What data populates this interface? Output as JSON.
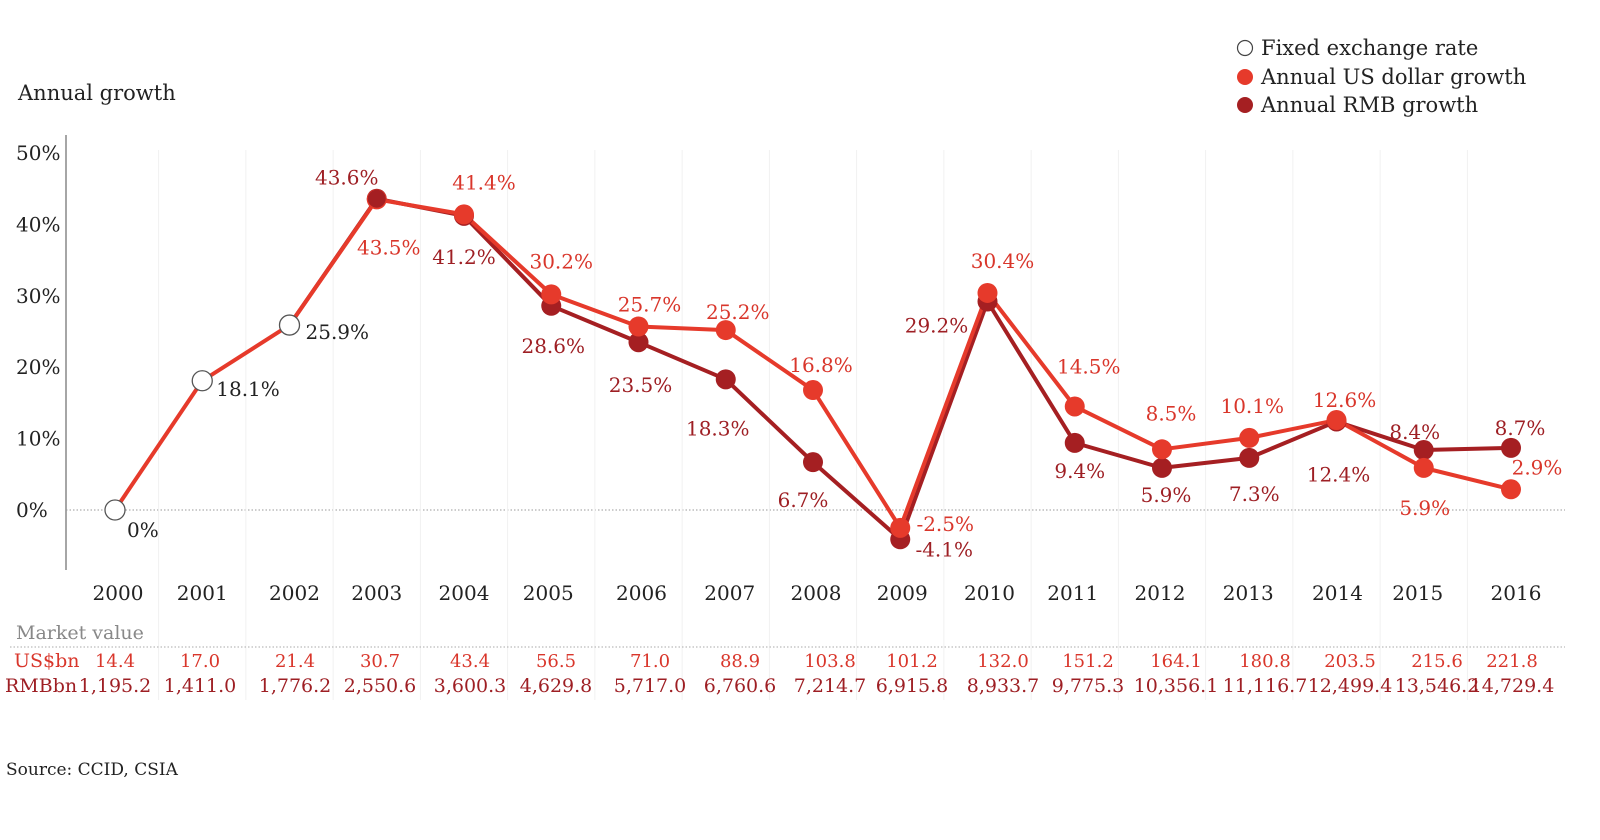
{
  "chart_data": {
    "type": "line",
    "ylabel": "Annual growth",
    "ylim": [
      -8,
      50
    ],
    "yticks": [
      "0%",
      "10%",
      "20%",
      "30%",
      "40%",
      "50%"
    ],
    "ytick_values": [
      0,
      10,
      20,
      30,
      40,
      50
    ],
    "grid": false,
    "legend_position": "top-right",
    "legend": [
      "Fixed exchange rate",
      "Annual US dollar growth",
      "Annual RMB growth"
    ],
    "x": [
      "2000",
      "2001",
      "2002",
      "2003",
      "2004",
      "2005",
      "2006",
      "2007",
      "2008",
      "2009",
      "2010",
      "2011",
      "2012",
      "2013",
      "2014",
      "2015",
      "2016"
    ],
    "fixed_years_count": 3,
    "series": [
      {
        "name": "Annual US dollar growth",
        "color": "#e63a2b",
        "values": [
          0,
          18.1,
          25.9,
          43.5,
          41.4,
          30.2,
          25.7,
          25.2,
          16.8,
          -2.5,
          30.4,
          14.5,
          8.5,
          10.1,
          12.6,
          5.9,
          2.9
        ],
        "labels": [
          "0%",
          "18.1%",
          "25.9%",
          "43.5%",
          "41.4%",
          "30.2%",
          "25.7%",
          "25.2%",
          "16.8%",
          "-2.5%",
          "30.4%",
          "14.5%",
          "8.5%",
          "10.1%",
          "12.6%",
          "5.9%",
          "2.9%"
        ]
      },
      {
        "name": "Annual RMB growth",
        "color": "#a51f22",
        "values": [
          0,
          18.1,
          25.9,
          43.6,
          41.2,
          28.6,
          23.5,
          18.3,
          6.7,
          -4.1,
          29.2,
          9.4,
          5.9,
          7.3,
          12.4,
          8.4,
          8.7
        ],
        "labels": [
          "",
          "",
          "",
          "43.6%",
          "41.2%",
          "28.6%",
          "23.5%",
          "18.3%",
          "6.7%",
          "-4.1%",
          "29.2%",
          "9.4%",
          "5.9%",
          "7.3%",
          "12.4%",
          "8.4%",
          "8.7%"
        ]
      }
    ],
    "table": {
      "title": "Market value",
      "rows": [
        {
          "label": "US$bn",
          "color": "#d9362b",
          "values": [
            "14.4",
            "17.0",
            "21.4",
            "30.7",
            "43.4",
            "56.5",
            "71.0",
            "88.9",
            "103.8",
            "101.2",
            "132.0",
            "151.2",
            "164.1",
            "180.8",
            "203.5",
            "215.6",
            "221.8"
          ]
        },
        {
          "label": "RMBbn",
          "color": "#9e1f24",
          "values": [
            "1,195.2",
            "1,411.0",
            "1,776.2",
            "2,550.6",
            "3,600.3",
            "4,629.8",
            "5,717.0",
            "6,760.6",
            "7,214.7",
            "6,915.8",
            "8,933.7",
            "9,775.3",
            "10,356.1",
            "11,116.7",
            "12,499.4",
            "13,546.2",
            "14,729.4"
          ]
        }
      ]
    },
    "source": "Source: CCID, CSIA"
  }
}
